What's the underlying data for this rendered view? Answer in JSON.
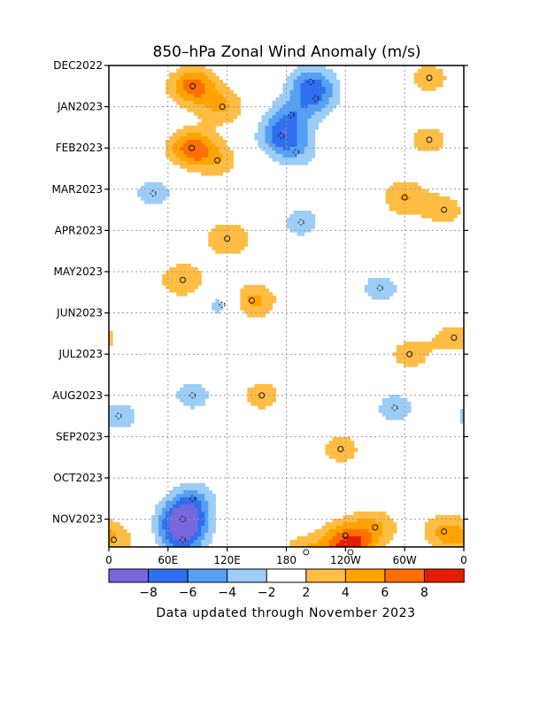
{
  "chart_data": {
    "type": "heatmap",
    "title": "850–hPa Zonal Wind Anomaly (m/s)",
    "xlabel": "",
    "ylabel": "",
    "x_ticks": [
      "0",
      "60E",
      "120E",
      "180",
      "120W",
      "60W",
      "0"
    ],
    "x_tick_lon": [
      0,
      60,
      120,
      180,
      240,
      300,
      360
    ],
    "y_ticks": [
      "DEC2022",
      "JAN2023",
      "FEB2023",
      "MAR2023",
      "APR2023",
      "MAY2023",
      "JUN2023",
      "JUL2023",
      "AUG2023",
      "SEP2023",
      "OCT2023",
      "NOV2023"
    ],
    "grid": true,
    "colorbar": {
      "tick_labels": [
        "−8",
        "−6",
        "−4",
        "−2",
        "2",
        "4",
        "6",
        "8"
      ],
      "colors": [
        "#7766dd",
        "#2f6ff0",
        "#55a0f2",
        "#9ccdf7",
        "#ffffff",
        "#ffbd44",
        "#ffa300",
        "#ff6e00",
        "#e41d00"
      ]
    },
    "features": [
      {
        "lon": 85,
        "month": 0.5,
        "value": 7
      },
      {
        "lon": 115,
        "month": 1.0,
        "value": 4
      },
      {
        "lon": 84,
        "month": 2.0,
        "value": 7
      },
      {
        "lon": 110,
        "month": 2.3,
        "value": 3
      },
      {
        "lon": 205,
        "month": 0.4,
        "value": -5
      },
      {
        "lon": 210,
        "month": 0.8,
        "value": -4
      },
      {
        "lon": 185,
        "month": 1.2,
        "value": -4
      },
      {
        "lon": 175,
        "month": 1.7,
        "value": -6
      },
      {
        "lon": 190,
        "month": 2.1,
        "value": -3
      },
      {
        "lon": 325,
        "month": 0.3,
        "value": 3
      },
      {
        "lon": 325,
        "month": 1.8,
        "value": 3
      },
      {
        "lon": 300,
        "month": 3.2,
        "value": 4
      },
      {
        "lon": 340,
        "month": 3.5,
        "value": 3
      },
      {
        "lon": 120,
        "month": 4.2,
        "value": 4
      },
      {
        "lon": 75,
        "month": 5.2,
        "value": 4
      },
      {
        "lon": 145,
        "month": 5.7,
        "value": 5
      },
      {
        "lon": 45,
        "month": 3.1,
        "value": -3
      },
      {
        "lon": 195,
        "month": 3.8,
        "value": -3
      },
      {
        "lon": 275,
        "month": 5.4,
        "value": -3
      },
      {
        "lon": 115,
        "month": 5.8,
        "value": -3
      },
      {
        "lon": 85,
        "month": 8.0,
        "value": -3
      },
      {
        "lon": 10,
        "month": 8.5,
        "value": -3
      },
      {
        "lon": 290,
        "month": 8.3,
        "value": -3
      },
      {
        "lon": 155,
        "month": 8.0,
        "value": 3
      },
      {
        "lon": 305,
        "month": 7.0,
        "value": 3
      },
      {
        "lon": 350,
        "month": 6.6,
        "value": 3
      },
      {
        "lon": 85,
        "month": 10.5,
        "value": -4
      },
      {
        "lon": 75,
        "month": 11.0,
        "value": -9
      },
      {
        "lon": 75,
        "month": 11.5,
        "value": -6
      },
      {
        "lon": 240,
        "month": 11.4,
        "value": 4
      },
      {
        "lon": 270,
        "month": 11.2,
        "value": 4
      },
      {
        "lon": 200,
        "month": 11.8,
        "value": 4
      },
      {
        "lon": 245,
        "month": 11.8,
        "value": 7
      },
      {
        "lon": 340,
        "month": 11.3,
        "value": 4
      },
      {
        "lon": 235,
        "month": 9.3,
        "value": 3
      },
      {
        "lon": 5,
        "month": 11.5,
        "value": 3
      }
    ]
  },
  "footer": {
    "note": "Data updated through November 2023"
  }
}
